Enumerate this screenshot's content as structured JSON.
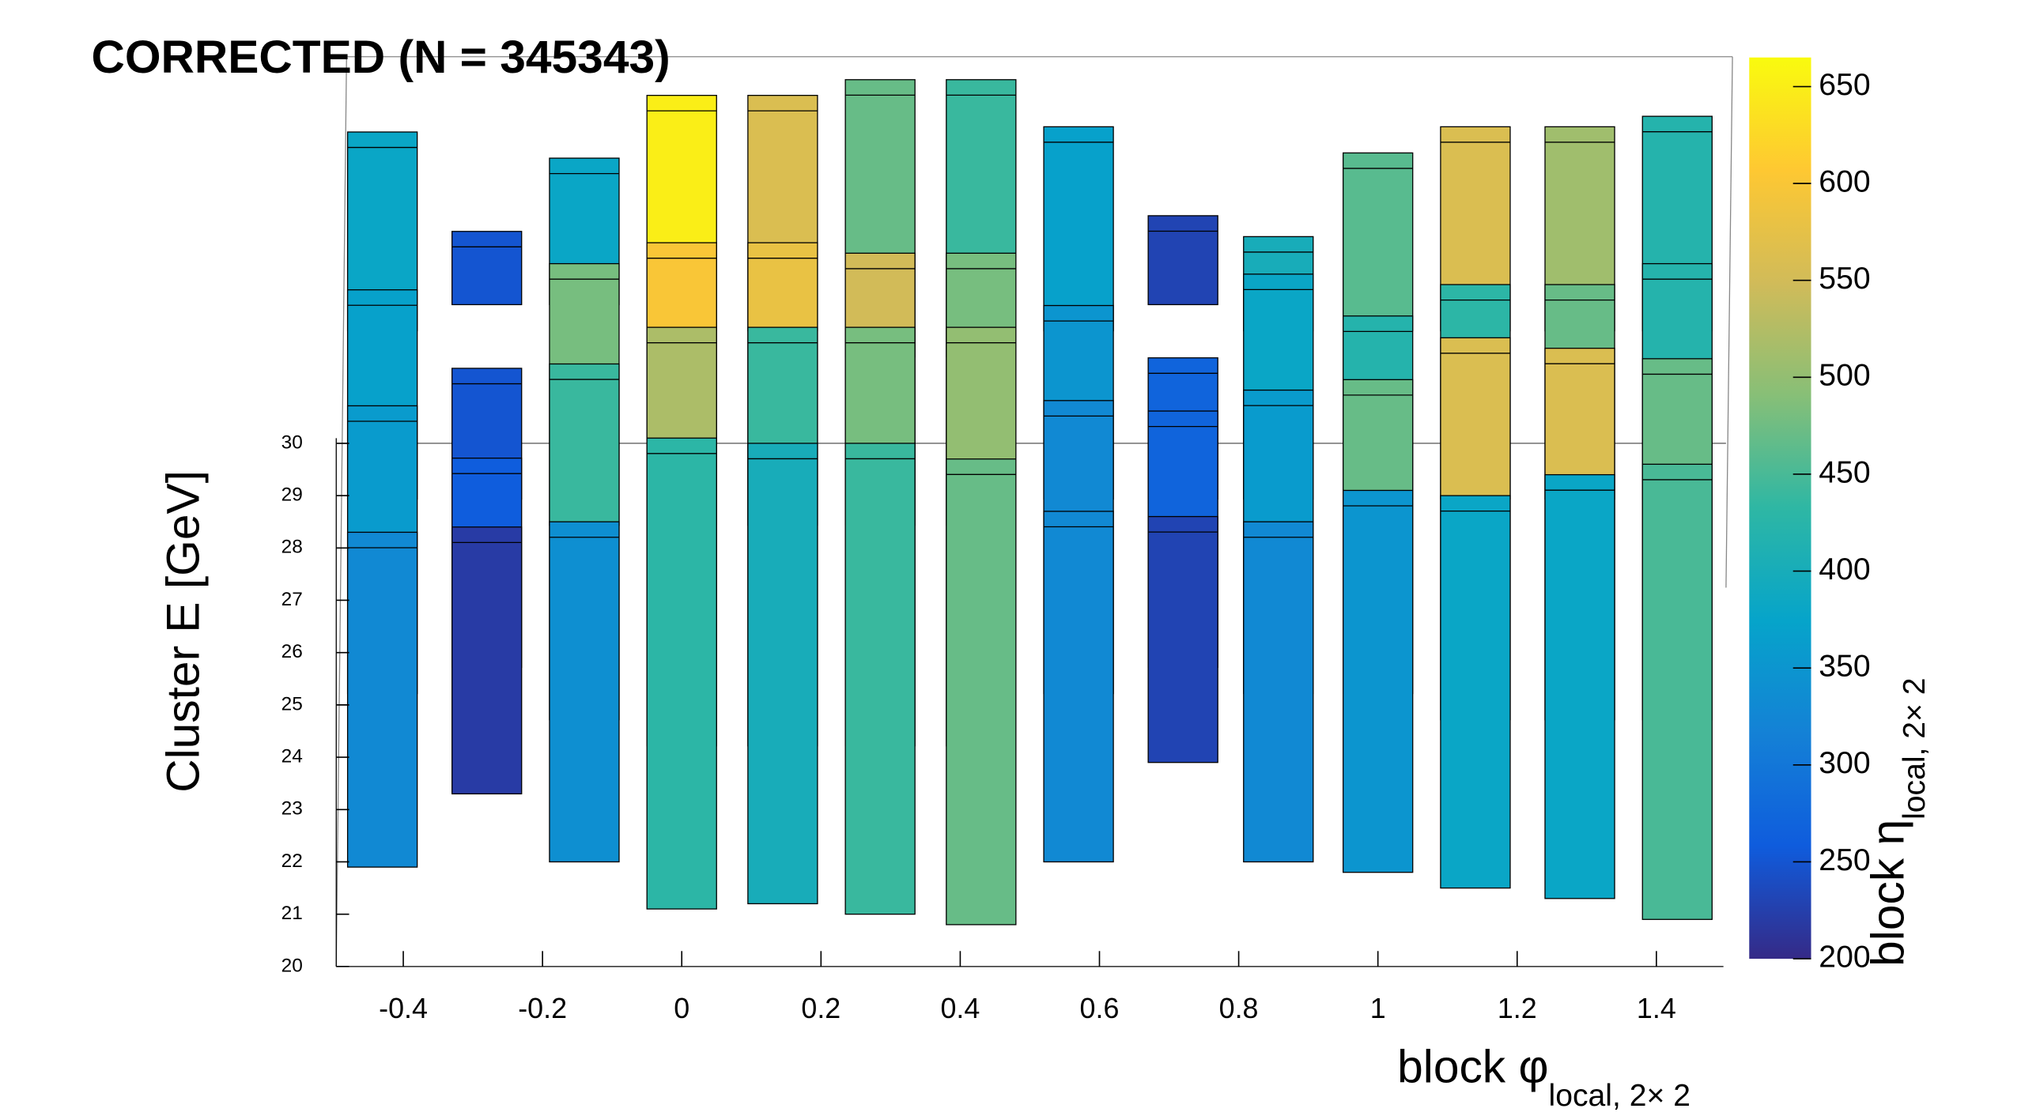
{
  "chart_data": {
    "type": "lego",
    "title": "CORRECTED  (N = 345343)",
    "x_label": "block φ",
    "x_label_sub": "local, 2× 2",
    "y_label": "Cluster E  [GeV]",
    "z_label": "block η",
    "z_label_sub": "local, 2× 2",
    "xlim": [
      -0.5,
      1.5
    ],
    "xticks": [
      -0.4,
      -0.2,
      0,
      0.2,
      0.4,
      0.6,
      0.8,
      1,
      1.2,
      1.4
    ],
    "ylim": [
      20,
      30
    ],
    "yticks": [
      20,
      21,
      22,
      23,
      24,
      25,
      26,
      27,
      28,
      29,
      30
    ],
    "colorbar_lim": [
      200,
      665
    ],
    "colorbar_ticks": [
      200,
      250,
      300,
      350,
      400,
      450,
      500,
      550,
      600,
      650
    ],
    "palette": [
      "#352a87",
      "#0f5cdd",
      "#1481d6",
      "#06a4ca",
      "#2eb7a4",
      "#87bf77",
      "#d1bb59",
      "#fec832",
      "#f9fb0e"
    ],
    "boxes": [
      {
        "x": -0.43,
        "eta": 0.4,
        "e_min": 25.5,
        "e_max": 29.3,
        "count": 380
      },
      {
        "x": -0.28,
        "eta": 0.4,
        "e_min": 26.0,
        "e_max": 27.4,
        "count": 250
      },
      {
        "x": -0.14,
        "eta": 0.4,
        "e_min": 26.0,
        "e_max": 28.8,
        "count": 380
      },
      {
        "x": 0.0,
        "eta": 0.4,
        "e_min": 25.5,
        "e_max": 30.0,
        "count": 650
      },
      {
        "x": 0.145,
        "eta": 0.4,
        "e_min": 25.5,
        "e_max": 30.0,
        "count": 560
      },
      {
        "x": 0.285,
        "eta": 0.4,
        "e_min": 25.0,
        "e_max": 30.3,
        "count": 470
      },
      {
        "x": 0.43,
        "eta": 0.4,
        "e_min": 25.0,
        "e_max": 30.3,
        "count": 440
      },
      {
        "x": 0.57,
        "eta": 0.4,
        "e_min": 25.5,
        "e_max": 29.4,
        "count": 370
      },
      {
        "x": 0.72,
        "eta": 0.4,
        "e_min": 26.0,
        "e_max": 27.7,
        "count": 230
      },
      {
        "x": 0.857,
        "eta": 0.4,
        "e_min": 25.5,
        "e_max": 27.3,
        "count": 400
      },
      {
        "x": 1.0,
        "eta": 0.4,
        "e_min": 25.5,
        "e_max": 28.9,
        "count": 460
      },
      {
        "x": 1.14,
        "eta": 0.4,
        "e_min": 25.5,
        "e_max": 29.4,
        "count": 560
      },
      {
        "x": 1.29,
        "eta": 0.4,
        "e_min": 25.5,
        "e_max": 29.4,
        "count": 510
      },
      {
        "x": 1.43,
        "eta": 0.4,
        "e_min": 25.5,
        "e_max": 29.6,
        "count": 420
      },
      {
        "x": -0.43,
        "eta": -0.2,
        "e_min": 24.5,
        "e_max": 28.5,
        "count": 370
      },
      {
        "x": -0.28,
        "eta": -0.2,
        "e_min": 24.5,
        "e_max": 27.0,
        "count": 250
      },
      {
        "x": -0.14,
        "eta": -0.2,
        "e_min": 24.0,
        "e_max": 29.0,
        "count": 480
      },
      {
        "x": 0.0,
        "eta": -0.2,
        "e_min": 24.0,
        "e_max": 29.4,
        "count": 600
      },
      {
        "x": 0.145,
        "eta": -0.2,
        "e_min": 24.0,
        "e_max": 29.4,
        "count": 580
      },
      {
        "x": 0.285,
        "eta": -0.2,
        "e_min": 24.0,
        "e_max": 29.2,
        "count": 550
      },
      {
        "x": 0.43,
        "eta": -0.2,
        "e_min": 24.0,
        "e_max": 29.2,
        "count": 480
      },
      {
        "x": 0.57,
        "eta": -0.2,
        "e_min": 24.5,
        "e_max": 28.2,
        "count": 350
      },
      {
        "x": 0.72,
        "eta": -0.2,
        "e_min": 24.5,
        "e_max": 27.2,
        "count": 270
      },
      {
        "x": 0.857,
        "eta": -0.2,
        "e_min": 24.5,
        "e_max": 28.8,
        "count": 380
      },
      {
        "x": 1.0,
        "eta": -0.2,
        "e_min": 24.5,
        "e_max": 28.0,
        "count": 420
      },
      {
        "x": 1.14,
        "eta": -0.2,
        "e_min": 24.5,
        "e_max": 28.6,
        "count": 430
      },
      {
        "x": 1.29,
        "eta": -0.2,
        "e_min": 24.5,
        "e_max": 28.6,
        "count": 470
      },
      {
        "x": 1.43,
        "eta": -0.2,
        "e_min": 24.5,
        "e_max": 29.0,
        "count": 420
      },
      {
        "x": -0.43,
        "eta": -0.8,
        "e_min": 23.0,
        "e_max": 28.5,
        "count": 360
      },
      {
        "x": -0.28,
        "eta": -0.8,
        "e_min": 23.5,
        "e_max": 27.5,
        "count": 260
      },
      {
        "x": -0.14,
        "eta": -0.8,
        "e_min": 22.5,
        "e_max": 29.3,
        "count": 440
      },
      {
        "x": 0.0,
        "eta": -0.8,
        "e_min": 22.0,
        "e_max": 30.0,
        "count": 520
      },
      {
        "x": 0.145,
        "eta": -0.8,
        "e_min": 22.0,
        "e_max": 30.0,
        "count": 440
      },
      {
        "x": 0.285,
        "eta": -0.8,
        "e_min": 22.0,
        "e_max": 30.0,
        "count": 480
      },
      {
        "x": 0.43,
        "eta": -0.8,
        "e_min": 22.0,
        "e_max": 30.0,
        "count": 500
      },
      {
        "x": 0.57,
        "eta": -0.8,
        "e_min": 23.0,
        "e_max": 28.6,
        "count": 330
      },
      {
        "x": 0.72,
        "eta": -0.8,
        "e_min": 23.5,
        "e_max": 28.4,
        "count": 270
      },
      {
        "x": 0.857,
        "eta": -0.8,
        "e_min": 23.0,
        "e_max": 28.8,
        "count": 360
      },
      {
        "x": 1.0,
        "eta": -0.8,
        "e_min": 23.0,
        "e_max": 29.0,
        "count": 470
      },
      {
        "x": 1.14,
        "eta": -0.8,
        "e_min": 22.5,
        "e_max": 29.8,
        "count": 560
      },
      {
        "x": 1.29,
        "eta": -0.8,
        "e_min": 22.5,
        "e_max": 29.6,
        "count": 560
      },
      {
        "x": 1.43,
        "eta": -0.8,
        "e_min": 22.5,
        "e_max": 29.4,
        "count": 470
      },
      {
        "x": -0.43,
        "eta": -1.4,
        "e_min": 21.9,
        "e_max": 28.3,
        "count": 330
      },
      {
        "x": -0.28,
        "eta": -1.4,
        "e_min": 23.3,
        "e_max": 28.4,
        "count": 220
      },
      {
        "x": -0.14,
        "eta": -1.4,
        "e_min": 22.0,
        "e_max": 28.5,
        "count": 340
      },
      {
        "x": 0.0,
        "eta": -1.4,
        "e_min": 21.1,
        "e_max": 30.1,
        "count": 430
      },
      {
        "x": 0.145,
        "eta": -1.4,
        "e_min": 21.2,
        "e_max": 30.0,
        "count": 400
      },
      {
        "x": 0.285,
        "eta": -1.4,
        "e_min": 21.0,
        "e_max": 30.0,
        "count": 440
      },
      {
        "x": 0.43,
        "eta": -1.4,
        "e_min": 20.8,
        "e_max": 29.7,
        "count": 470
      },
      {
        "x": 0.57,
        "eta": -1.4,
        "e_min": 22.0,
        "e_max": 28.7,
        "count": 330
      },
      {
        "x": 0.72,
        "eta": -1.4,
        "e_min": 23.9,
        "e_max": 28.6,
        "count": 230
      },
      {
        "x": 0.857,
        "eta": -1.4,
        "e_min": 22.0,
        "e_max": 28.5,
        "count": 330
      },
      {
        "x": 1.0,
        "eta": -1.4,
        "e_min": 21.8,
        "e_max": 29.1,
        "count": 350
      },
      {
        "x": 1.14,
        "eta": -1.4,
        "e_min": 21.5,
        "e_max": 29.0,
        "count": 380
      },
      {
        "x": 1.29,
        "eta": -1.4,
        "e_min": 21.3,
        "e_max": 29.4,
        "count": 380
      },
      {
        "x": 1.43,
        "eta": -1.4,
        "e_min": 20.9,
        "e_max": 29.6,
        "count": 450
      }
    ]
  }
}
